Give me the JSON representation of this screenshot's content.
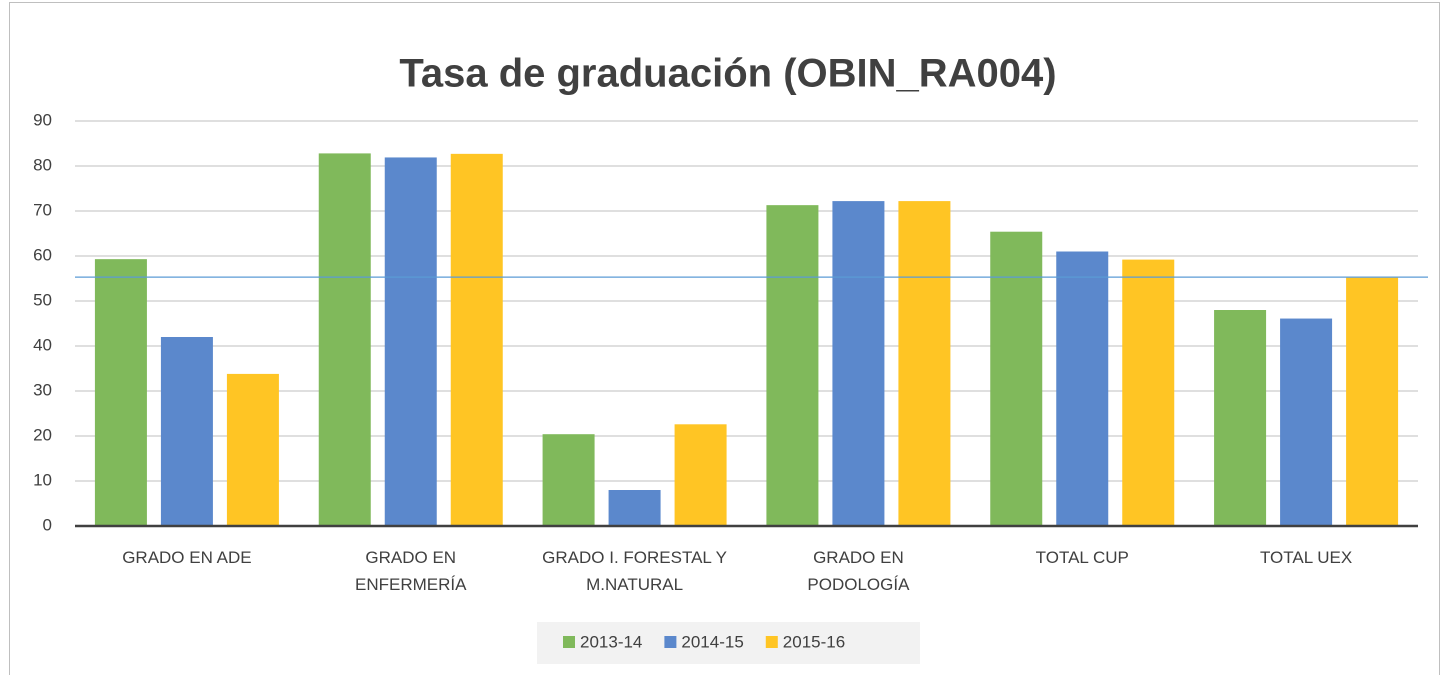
{
  "chart_data": {
    "type": "bar",
    "title": "Tasa de graduación (OBIN_RA004)",
    "categories": [
      "GRADO EN ADE",
      "GRADO EN\nENFERMERÍA",
      "GRADO I. FORESTAL Y\nM.NATURAL",
      "GRADO EN\nPODOLOGÍA",
      "TOTAL CUP",
      "TOTAL UEX"
    ],
    "series": [
      {
        "name": "2013-14",
        "color": "#80b95b",
        "values": [
          59.3,
          82.8,
          20.4,
          71.3,
          65.4,
          48
        ]
      },
      {
        "name": "2014-15",
        "color": "#5b88cc",
        "values": [
          42,
          81.9,
          8,
          72.2,
          61,
          46.1
        ]
      },
      {
        "name": "2015-16",
        "color": "#ffc524",
        "values": [
          33.8,
          82.7,
          22.6,
          72.2,
          59.2,
          55.2
        ]
      }
    ],
    "ylim": [
      0,
      90
    ],
    "yticks": [
      0,
      10,
      20,
      30,
      40,
      50,
      60,
      70,
      80,
      90
    ],
    "grid": true,
    "reference_line": {
      "value": 55.3,
      "color": "#5b9bd5"
    },
    "legend": "bottom"
  }
}
